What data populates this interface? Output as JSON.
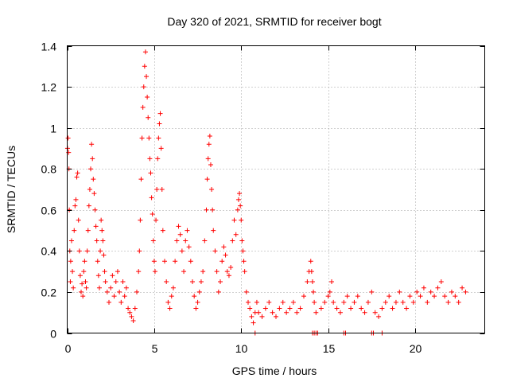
{
  "chart_data": {
    "type": "scatter",
    "title": "Day 320 of 2021, SRMTID for receiver bogt",
    "xlabel": "GPS time / hours",
    "ylabel": "SRMTID / TECUs",
    "xlim": [
      0,
      24
    ],
    "ylim": [
      0,
      1.4
    ],
    "x_ticks": [
      0,
      5,
      10,
      15,
      20
    ],
    "x_tick_labels": [
      "0",
      "5",
      "10",
      "15",
      "20"
    ],
    "y_ticks": [
      0,
      0.2,
      0.4,
      0.6,
      0.8,
      1.0,
      1.2,
      1.4
    ],
    "y_tick_labels": [
      "0",
      "0.2",
      "0.4",
      "0.6",
      "0.8",
      "1",
      "1.2",
      "1.4"
    ],
    "grid": true,
    "marker": "+",
    "color": "#ff0000",
    "series": [
      {
        "name": "SRMTID",
        "points": [
          [
            0.02,
            0.9
          ],
          [
            0.05,
            0.95
          ],
          [
            0.08,
            0.88
          ],
          [
            0.1,
            0.8
          ],
          [
            0.12,
            0.6
          ],
          [
            0.15,
            0.4
          ],
          [
            0.18,
            0.25
          ],
          [
            0.2,
            0.35
          ],
          [
            0.25,
            0.45
          ],
          [
            0.3,
            0.3
          ],
          [
            0.35,
            0.22
          ],
          [
            0.4,
            0.5
          ],
          [
            0.45,
            0.62
          ],
          [
            0.5,
            0.65
          ],
          [
            0.55,
            0.76
          ],
          [
            0.6,
            0.78
          ],
          [
            0.65,
            0.55
          ],
          [
            0.7,
            0.4
          ],
          [
            0.75,
            0.28
          ],
          [
            0.8,
            0.2
          ],
          [
            0.85,
            0.24
          ],
          [
            0.9,
            0.18
          ],
          [
            0.95,
            0.3
          ],
          [
            1.0,
            0.35
          ],
          [
            1.05,
            0.25
          ],
          [
            1.1,
            0.22
          ],
          [
            1.15,
            0.4
          ],
          [
            1.2,
            0.5
          ],
          [
            1.25,
            0.62
          ],
          [
            1.3,
            0.7
          ],
          [
            1.35,
            0.8
          ],
          [
            1.4,
            0.92
          ],
          [
            1.45,
            0.85
          ],
          [
            1.5,
            0.75
          ],
          [
            1.55,
            0.68
          ],
          [
            1.6,
            0.6
          ],
          [
            1.65,
            0.52
          ],
          [
            1.7,
            0.45
          ],
          [
            1.75,
            0.35
          ],
          [
            1.8,
            0.28
          ],
          [
            1.85,
            0.22
          ],
          [
            1.9,
            0.4
          ],
          [
            1.95,
            0.55
          ],
          [
            2.0,
            0.5
          ],
          [
            2.05,
            0.45
          ],
          [
            2.1,
            0.38
          ],
          [
            2.15,
            0.3
          ],
          [
            2.2,
            0.25
          ],
          [
            2.3,
            0.2
          ],
          [
            2.4,
            0.15
          ],
          [
            2.5,
            0.22
          ],
          [
            2.6,
            0.28
          ],
          [
            2.7,
            0.18
          ],
          [
            2.8,
            0.25
          ],
          [
            2.9,
            0.3
          ],
          [
            3.0,
            0.2
          ],
          [
            3.1,
            0.15
          ],
          [
            3.2,
            0.25
          ],
          [
            3.3,
            0.18
          ],
          [
            3.4,
            0.22
          ],
          [
            3.5,
            0.12
          ],
          [
            3.6,
            0.1
          ],
          [
            3.7,
            0.08
          ],
          [
            3.8,
            0.06
          ],
          [
            3.9,
            0.12
          ],
          [
            4.0,
            0.2
          ],
          [
            4.1,
            0.3
          ],
          [
            4.15,
            0.4
          ],
          [
            4.2,
            0.55
          ],
          [
            4.25,
            0.75
          ],
          [
            4.3,
            0.95
          ],
          [
            4.35,
            1.1
          ],
          [
            4.4,
            1.2
          ],
          [
            4.45,
            1.3
          ],
          [
            4.5,
            1.37
          ],
          [
            4.55,
            1.25
          ],
          [
            4.6,
            1.15
          ],
          [
            4.65,
            1.05
          ],
          [
            4.7,
            0.95
          ],
          [
            4.75,
            0.85
          ],
          [
            4.8,
            0.78
          ],
          [
            4.85,
            0.66
          ],
          [
            4.9,
            0.58
          ],
          [
            4.95,
            0.45
          ],
          [
            5.0,
            0.35
          ],
          [
            5.05,
            0.3
          ],
          [
            5.1,
            0.55
          ],
          [
            5.15,
            0.7
          ],
          [
            5.2,
            0.85
          ],
          [
            5.25,
            0.95
          ],
          [
            5.3,
            1.02
          ],
          [
            5.35,
            1.07
          ],
          [
            5.4,
            0.9
          ],
          [
            5.45,
            0.7
          ],
          [
            5.5,
            0.5
          ],
          [
            5.6,
            0.35
          ],
          [
            5.7,
            0.25
          ],
          [
            5.8,
            0.15
          ],
          [
            5.9,
            0.12
          ],
          [
            6.0,
            0.18
          ],
          [
            6.1,
            0.22
          ],
          [
            6.2,
            0.35
          ],
          [
            6.3,
            0.45
          ],
          [
            6.4,
            0.52
          ],
          [
            6.5,
            0.48
          ],
          [
            6.6,
            0.4
          ],
          [
            6.7,
            0.3
          ],
          [
            6.8,
            0.45
          ],
          [
            6.9,
            0.5
          ],
          [
            7.0,
            0.42
          ],
          [
            7.1,
            0.35
          ],
          [
            7.2,
            0.25
          ],
          [
            7.3,
            0.18
          ],
          [
            7.4,
            0.12
          ],
          [
            7.5,
            0.15
          ],
          [
            7.6,
            0.2
          ],
          [
            7.7,
            0.25
          ],
          [
            7.8,
            0.3
          ],
          [
            7.9,
            0.45
          ],
          [
            8.0,
            0.6
          ],
          [
            8.05,
            0.75
          ],
          [
            8.1,
            0.85
          ],
          [
            8.15,
            0.92
          ],
          [
            8.2,
            0.96
          ],
          [
            8.25,
            0.82
          ],
          [
            8.3,
            0.7
          ],
          [
            8.35,
            0.6
          ],
          [
            8.4,
            0.5
          ],
          [
            8.5,
            0.4
          ],
          [
            8.6,
            0.3
          ],
          [
            8.7,
            0.2
          ],
          [
            8.8,
            0.25
          ],
          [
            8.9,
            0.35
          ],
          [
            9.0,
            0.42
          ],
          [
            9.1,
            0.38
          ],
          [
            9.2,
            0.3
          ],
          [
            9.3,
            0.28
          ],
          [
            9.4,
            0.32
          ],
          [
            9.5,
            0.45
          ],
          [
            9.6,
            0.55
          ],
          [
            9.7,
            0.48
          ],
          [
            9.8,
            0.6
          ],
          [
            9.85,
            0.65
          ],
          [
            9.9,
            0.68
          ],
          [
            9.95,
            0.62
          ],
          [
            10.0,
            0.55
          ],
          [
            10.05,
            0.45
          ],
          [
            10.1,
            0.4
          ],
          [
            10.15,
            0.35
          ],
          [
            10.2,
            0.3
          ],
          [
            10.3,
            0.2
          ],
          [
            10.4,
            0.15
          ],
          [
            10.5,
            0.12
          ],
          [
            10.6,
            0.08
          ],
          [
            10.7,
            0.05
          ],
          [
            10.8,
            0.1
          ],
          [
            10.9,
            0.15
          ],
          [
            11.0,
            0.1
          ],
          [
            11.2,
            0.08
          ],
          [
            11.4,
            0.12
          ],
          [
            11.6,
            0.15
          ],
          [
            11.8,
            0.1
          ],
          [
            12.0,
            0.08
          ],
          [
            12.2,
            0.12
          ],
          [
            12.4,
            0.15
          ],
          [
            12.6,
            0.1
          ],
          [
            12.8,
            0.12
          ],
          [
            13.0,
            0.15
          ],
          [
            13.2,
            0.1
          ],
          [
            13.4,
            0.12
          ],
          [
            13.6,
            0.18
          ],
          [
            13.8,
            0.25
          ],
          [
            13.9,
            0.3
          ],
          [
            14.0,
            0.35
          ],
          [
            14.05,
            0.3
          ],
          [
            14.1,
            0.25
          ],
          [
            14.15,
            0.2
          ],
          [
            14.2,
            0.15
          ],
          [
            14.3,
            0.1
          ],
          [
            14.6,
            0.12
          ],
          [
            14.8,
            0.15
          ],
          [
            15.0,
            0.18
          ],
          [
            15.1,
            0.2
          ],
          [
            15.2,
            0.25
          ],
          [
            15.3,
            0.15
          ],
          [
            15.5,
            0.12
          ],
          [
            15.7,
            0.1
          ],
          [
            15.9,
            0.15
          ],
          [
            16.1,
            0.18
          ],
          [
            16.3,
            0.12
          ],
          [
            16.5,
            0.15
          ],
          [
            16.7,
            0.18
          ],
          [
            16.9,
            0.12
          ],
          [
            17.1,
            0.1
          ],
          [
            17.3,
            0.15
          ],
          [
            17.5,
            0.2
          ],
          [
            17.7,
            0.1
          ],
          [
            17.9,
            0.08
          ],
          [
            18.1,
            0.12
          ],
          [
            18.3,
            0.15
          ],
          [
            18.5,
            0.18
          ],
          [
            18.7,
            0.12
          ],
          [
            18.9,
            0.15
          ],
          [
            19.1,
            0.2
          ],
          [
            19.3,
            0.15
          ],
          [
            19.5,
            0.12
          ],
          [
            19.7,
            0.18
          ],
          [
            19.9,
            0.15
          ],
          [
            20.1,
            0.2
          ],
          [
            20.3,
            0.18
          ],
          [
            20.5,
            0.22
          ],
          [
            20.7,
            0.15
          ],
          [
            20.9,
            0.2
          ],
          [
            21.1,
            0.18
          ],
          [
            21.3,
            0.22
          ],
          [
            21.5,
            0.25
          ],
          [
            21.7,
            0.18
          ],
          [
            21.9,
            0.15
          ],
          [
            22.1,
            0.2
          ],
          [
            22.3,
            0.18
          ],
          [
            22.5,
            0.15
          ],
          [
            22.7,
            0.22
          ],
          [
            22.9,
            0.2
          ],
          [
            10.8,
            0.0
          ],
          [
            14.1,
            0.0
          ],
          [
            14.2,
            0.0
          ],
          [
            14.3,
            0.0
          ],
          [
            14.4,
            0.0
          ],
          [
            15.9,
            0.0
          ],
          [
            16.0,
            0.0
          ],
          [
            17.5,
            0.0
          ],
          [
            17.6,
            0.0
          ],
          [
            18.1,
            0.0
          ]
        ]
      }
    ]
  }
}
